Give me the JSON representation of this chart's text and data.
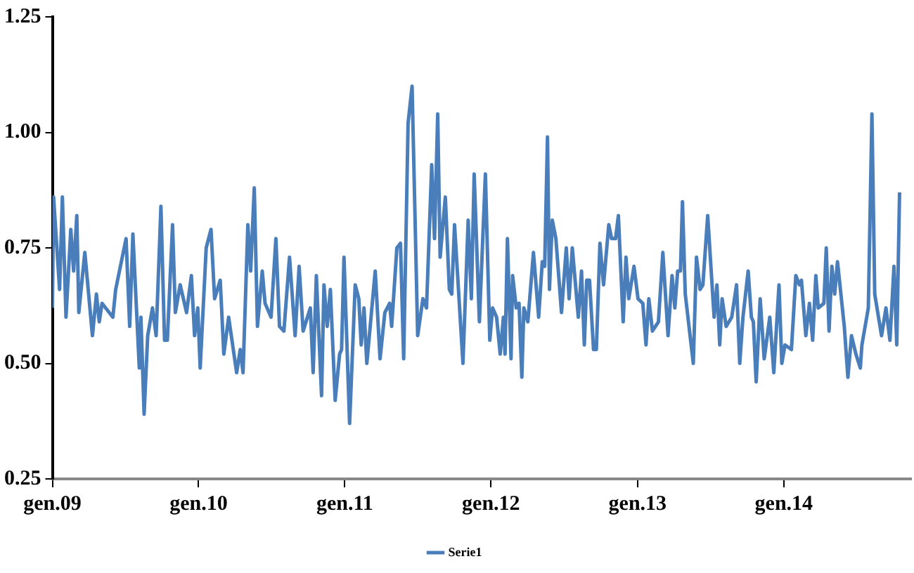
{
  "chart_data": {
    "type": "line",
    "grid": false,
    "legend": "bottom",
    "marker": "none",
    "line_style": "solid",
    "xlim": [
      "2009-01-01",
      "2014-11-15"
    ],
    "xticks": [
      {
        "value": "2009-01-01",
        "label": "gen.09"
      },
      {
        "value": "2010-01-01",
        "label": "gen.10"
      },
      {
        "value": "2011-01-01",
        "label": "gen.11"
      },
      {
        "value": "2012-01-01",
        "label": "gen.12"
      },
      {
        "value": "2013-01-01",
        "label": "gen.13"
      },
      {
        "value": "2014-01-01",
        "label": "gen.14"
      }
    ],
    "ylim": [
      0.25,
      1.25
    ],
    "yticks": [
      {
        "value": 0.25,
        "label": "0.25"
      },
      {
        "value": 0.5,
        "label": "0.50"
      },
      {
        "value": 0.75,
        "label": "0.75"
      },
      {
        "value": 1,
        "label": "1.00"
      },
      {
        "value": 1.25,
        "label": "1.25"
      }
    ],
    "series": [
      {
        "name": "Serie1",
        "color": "#4a7ebb",
        "x": [
          "2009-01-01",
          "2009-01-04",
          "2009-01-19",
          "2009-01-26",
          "2009-02-04",
          "2009-02-16",
          "2009-02-23",
          "2009-03-03",
          "2009-03-08",
          "2009-03-23",
          "2009-04-11",
          "2009-04-21",
          "2009-04-28",
          "2009-05-05",
          "2009-06-01",
          "2009-06-08",
          "2009-07-04",
          "2009-07-13",
          "2009-07-21",
          "2009-08-06",
          "2009-08-10",
          "2009-08-18",
          "2009-08-27",
          "2009-09-08",
          "2009-09-17",
          "2009-09-29",
          "2009-10-08",
          "2009-10-15",
          "2009-10-28",
          "2009-11-04",
          "2009-11-16",
          "2009-12-02",
          "2009-12-14",
          "2009-12-22",
          "2009-12-30",
          "2010-01-05",
          "2010-01-20",
          "2010-02-01",
          "2010-02-10",
          "2010-02-24",
          "2010-03-05",
          "2010-03-17",
          "2010-04-06",
          "2010-04-15",
          "2010-04-22",
          "2010-05-04",
          "2010-05-11",
          "2010-05-20",
          "2010-05-28",
          "2010-06-09",
          "2010-06-16",
          "2010-07-01",
          "2010-07-13",
          "2010-07-22",
          "2010-08-02",
          "2010-08-16",
          "2010-08-30",
          "2010-09-09",
          "2010-09-19",
          "2010-10-07",
          "2010-10-14",
          "2010-10-22",
          "2010-11-04",
          "2010-11-10",
          "2010-11-18",
          "2010-11-26",
          "2010-12-08",
          "2010-12-19",
          "2010-12-24",
          "2010-12-30",
          "2011-01-13",
          "2011-01-27",
          "2011-02-05",
          "2011-02-11",
          "2011-02-18",
          "2011-02-25",
          "2011-03-18",
          "2011-03-30",
          "2011-04-11",
          "2011-04-23",
          "2011-04-28",
          "2011-05-11",
          "2011-05-20",
          "2011-05-28",
          "2011-06-08",
          "2011-06-18",
          "2011-07-02",
          "2011-07-15",
          "2011-07-24",
          "2011-08-06",
          "2011-08-13",
          "2011-08-21",
          "2011-08-27",
          "2011-09-09",
          "2011-09-19",
          "2011-09-25",
          "2011-10-02",
          "2011-10-23",
          "2011-11-05",
          "2011-11-13",
          "2011-11-20",
          "2011-12-03",
          "2011-12-18",
          "2011-12-29",
          "2012-01-05",
          "2012-01-15",
          "2012-01-24",
          "2012-02-01",
          "2012-02-05",
          "2012-02-11",
          "2012-02-20",
          "2012-02-24",
          "2012-03-04",
          "2012-03-11",
          "2012-03-18",
          "2012-03-23",
          "2012-04-02",
          "2012-04-16",
          "2012-04-29",
          "2012-05-08",
          "2012-05-14",
          "2012-05-21",
          "2012-05-26",
          "2012-06-02",
          "2012-06-11",
          "2012-06-25",
          "2012-07-07",
          "2012-07-14",
          "2012-07-22",
          "2012-08-06",
          "2012-08-14",
          "2012-08-21",
          "2012-08-27",
          "2012-09-03",
          "2012-09-13",
          "2012-09-20",
          "2012-09-29",
          "2012-10-08",
          "2012-10-21",
          "2012-10-28",
          "2012-11-07",
          "2012-11-14",
          "2012-11-26",
          "2012-12-03",
          "2012-12-10",
          "2012-12-23",
          "2013-01-02",
          "2013-01-14",
          "2013-01-22",
          "2013-01-29",
          "2013-02-07",
          "2013-02-22",
          "2013-03-05",
          "2013-03-18",
          "2013-03-28",
          "2013-04-04",
          "2013-04-11",
          "2013-04-18",
          "2013-04-23",
          "2013-04-30",
          "2013-05-20",
          "2013-05-28",
          "2013-06-06",
          "2013-06-13",
          "2013-06-25",
          "2013-07-11",
          "2013-07-18",
          "2013-07-25",
          "2013-07-31",
          "2013-08-10",
          "2013-08-24",
          "2013-09-05",
          "2013-09-13",
          "2013-09-21",
          "2013-10-04",
          "2013-10-12",
          "2013-10-17",
          "2013-10-24",
          "2013-11-03",
          "2013-11-13",
          "2013-11-27",
          "2013-12-07",
          "2013-12-20",
          "2013-12-27",
          "2014-01-04",
          "2014-01-20",
          "2014-01-31",
          "2014-02-09",
          "2014-02-14",
          "2014-02-25",
          "2014-03-06",
          "2014-03-14",
          "2014-03-22",
          "2014-03-28",
          "2014-04-11",
          "2014-04-17",
          "2014-04-24",
          "2014-05-01",
          "2014-05-08",
          "2014-05-15",
          "2014-06-01",
          "2014-06-10",
          "2014-06-19",
          "2014-06-30",
          "2014-07-11",
          "2014-07-15",
          "2014-07-31",
          "2014-08-09",
          "2014-08-16",
          "2014-09-02",
          "2014-09-13",
          "2014-09-23",
          "2014-10-03",
          "2014-10-10",
          "2014-10-17"
        ],
        "values": [
          0.62,
          0.86,
          0.66,
          0.86,
          0.6,
          0.79,
          0.7,
          0.82,
          0.61,
          0.74,
          0.56,
          0.65,
          0.59,
          0.63,
          0.6,
          0.66,
          0.77,
          0.58,
          0.78,
          0.49,
          0.6,
          0.39,
          0.56,
          0.62,
          0.56,
          0.84,
          0.55,
          0.55,
          0.8,
          0.61,
          0.67,
          0.61,
          0.69,
          0.56,
          0.62,
          0.49,
          0.75,
          0.79,
          0.64,
          0.68,
          0.52,
          0.6,
          0.48,
          0.53,
          0.48,
          0.8,
          0.7,
          0.88,
          0.58,
          0.7,
          0.63,
          0.6,
          0.77,
          0.58,
          0.57,
          0.73,
          0.56,
          0.71,
          0.57,
          0.62,
          0.48,
          0.69,
          0.43,
          0.67,
          0.58,
          0.66,
          0.42,
          0.52,
          0.53,
          0.73,
          0.37,
          0.67,
          0.64,
          0.54,
          0.62,
          0.5,
          0.7,
          0.51,
          0.61,
          0.63,
          0.58,
          0.75,
          0.76,
          0.51,
          1.02,
          1.1,
          0.56,
          0.64,
          0.62,
          0.93,
          0.77,
          1.04,
          0.73,
          0.86,
          0.66,
          0.65,
          0.8,
          0.5,
          0.81,
          0.64,
          0.91,
          0.59,
          0.91,
          0.55,
          0.62,
          0.6,
          0.52,
          0.6,
          0.52,
          0.77,
          0.51,
          0.69,
          0.62,
          0.63,
          0.47,
          0.62,
          0.59,
          0.74,
          0.6,
          0.72,
          0.71,
          0.99,
          0.66,
          0.81,
          0.77,
          0.61,
          0.75,
          0.64,
          0.75,
          0.6,
          0.7,
          0.54,
          0.68,
          0.68,
          0.53,
          0.53,
          0.76,
          0.67,
          0.8,
          0.77,
          0.77,
          0.82,
          0.59,
          0.73,
          0.64,
          0.71,
          0.64,
          0.63,
          0.54,
          0.64,
          0.57,
          0.59,
          0.74,
          0.56,
          0.69,
          0.62,
          0.7,
          0.7,
          0.85,
          0.65,
          0.5,
          0.73,
          0.66,
          0.67,
          0.82,
          0.6,
          0.67,
          0.54,
          0.64,
          0.58,
          0.6,
          0.67,
          0.5,
          0.6,
          0.7,
          0.6,
          0.59,
          0.46,
          0.64,
          0.51,
          0.6,
          0.48,
          0.67,
          0.5,
          0.54,
          0.53,
          0.69,
          0.67,
          0.68,
          0.56,
          0.63,
          0.55,
          0.69,
          0.62,
          0.63,
          0.75,
          0.57,
          0.71,
          0.65,
          0.72,
          0.58,
          0.47,
          0.56,
          0.52,
          0.49,
          0.54,
          0.62,
          1.04,
          0.65,
          0.56,
          0.62,
          0.55,
          0.71,
          0.54,
          0.87
        ]
      }
    ]
  }
}
